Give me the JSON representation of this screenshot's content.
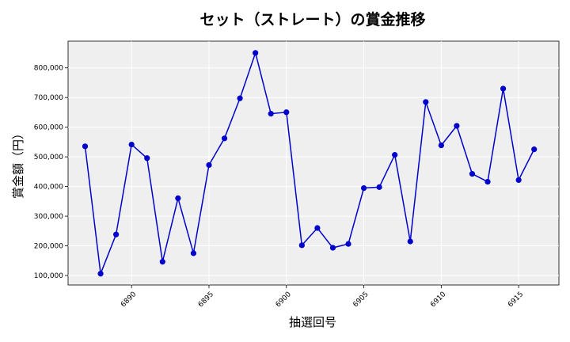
{
  "chart_data": {
    "type": "line",
    "title": "セット（ストレート）の賞金推移",
    "xlabel": "抽選回号",
    "ylabel": "賞金額（円）",
    "x_ticks": [
      6890,
      6895,
      6900,
      6905,
      6910,
      6915
    ],
    "y_ticks": [
      100000,
      200000,
      300000,
      400000,
      500000,
      600000,
      700000,
      800000
    ],
    "y_tick_labels": [
      "100,000",
      "200,000",
      "300,000",
      "400,000",
      "500,000",
      "600,000",
      "700,000",
      "800,000"
    ],
    "xlim": [
      6885.9,
      6917.6
    ],
    "ylim": [
      68000,
      890000
    ],
    "grid": true,
    "series": [
      {
        "color": "#0000cc",
        "x": [
          6887,
          6888,
          6889,
          6890,
          6891,
          6892,
          6893,
          6894,
          6895,
          6896,
          6897,
          6898,
          6899,
          6900,
          6901,
          6902,
          6903,
          6904,
          6905,
          6906,
          6907,
          6908,
          6909,
          6910,
          6911,
          6912,
          6913,
          6914,
          6915,
          6916
        ],
        "y": [
          535500,
          106100,
          238200,
          541500,
          495600,
          146400,
          360500,
          175100,
          472500,
          562300,
          697400,
          850400,
          645500,
          650400,
          201900,
          260100,
          193500,
          206500,
          394800,
          397900,
          506700,
          214800,
          684900,
          538800,
          604500,
          442600,
          416100,
          730100,
          421800,
          525400
        ]
      }
    ]
  }
}
